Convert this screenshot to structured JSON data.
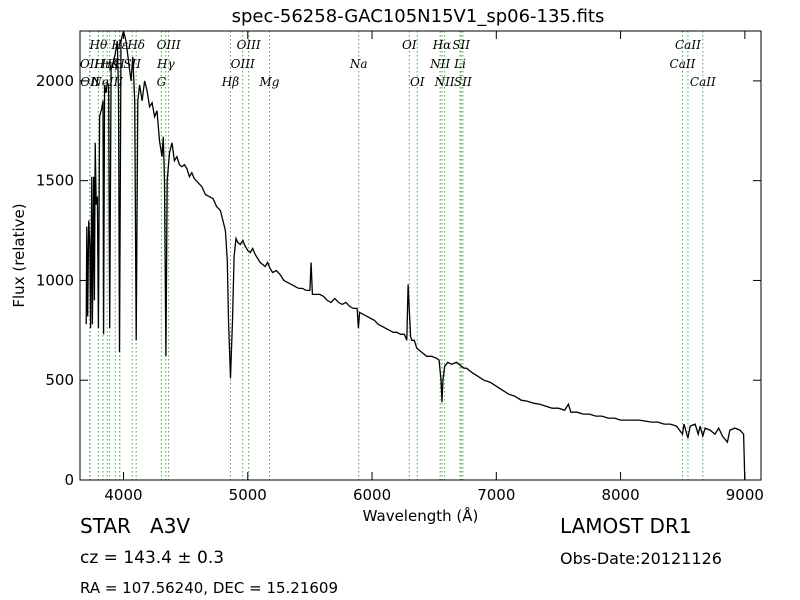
{
  "header": {
    "title": "spec-56258-GAC105N15V1_sp06-135.fits"
  },
  "info": {
    "classification": "STAR   A3V",
    "redshift": "cz = 143.4 ± 0.3",
    "coords": "RA = 107.56240, DEC = 15.21609",
    "survey": "LAMOST DR1",
    "obs_date": "Obs-Date:20121126"
  },
  "chart_data": {
    "type": "line",
    "title": "spec-56258-GAC105N15V1_sp06-135.fits",
    "xlabel": "Wavelength (Å)",
    "ylabel": "Flux (relative)",
    "xlim": [
      3650,
      9130
    ],
    "ylim": [
      0,
      2250
    ],
    "xticks": [
      4000,
      5000,
      6000,
      7000,
      8000,
      9000
    ],
    "yticks": [
      0,
      500,
      1000,
      1500,
      2000
    ],
    "grid": false,
    "line_color": "#000000",
    "marker_color": "#44aa44",
    "series": [
      {
        "values": [
          [
            3700,
            780
          ],
          [
            3705,
            1270
          ],
          [
            3712,
            820
          ],
          [
            3720,
            1300
          ],
          [
            3730,
            1180
          ],
          [
            3735,
            760
          ],
          [
            3745,
            1520
          ],
          [
            3750,
            780
          ],
          [
            3760,
            1520
          ],
          [
            3766,
            900
          ],
          [
            3772,
            1690
          ],
          [
            3780,
            1380
          ],
          [
            3790,
            1420
          ],
          [
            3798,
            760
          ],
          [
            3808,
            1820
          ],
          [
            3815,
            1840
          ],
          [
            3825,
            1860
          ],
          [
            3835,
            1900
          ],
          [
            3840,
            730
          ],
          [
            3848,
            1980
          ],
          [
            3860,
            1940
          ],
          [
            3870,
            1990
          ],
          [
            3880,
            1980
          ],
          [
            3889,
            760
          ],
          [
            3900,
            2060
          ],
          [
            3920,
            2100
          ],
          [
            3935,
            2140
          ],
          [
            3950,
            2200
          ],
          [
            3960,
            1950
          ],
          [
            3968,
            640
          ],
          [
            3980,
            2200
          ],
          [
            4000,
            2250
          ],
          [
            4020,
            2200
          ],
          [
            4040,
            2100
          ],
          [
            4060,
            2000
          ],
          [
            4075,
            2120
          ],
          [
            4090,
            1900
          ],
          [
            4102,
            700
          ],
          [
            4115,
            1900
          ],
          [
            4130,
            1980
          ],
          [
            4150,
            1900
          ],
          [
            4170,
            2000
          ],
          [
            4190,
            1950
          ],
          [
            4210,
            1870
          ],
          [
            4230,
            1890
          ],
          [
            4250,
            1820
          ],
          [
            4270,
            1850
          ],
          [
            4290,
            1700
          ],
          [
            4310,
            1620
          ],
          [
            4320,
            1720
          ],
          [
            4330,
            1500
          ],
          [
            4341,
            620
          ],
          [
            4352,
            1500
          ],
          [
            4370,
            1640
          ],
          [
            4390,
            1690
          ],
          [
            4410,
            1600
          ],
          [
            4430,
            1620
          ],
          [
            4450,
            1580
          ],
          [
            4470,
            1570
          ],
          [
            4490,
            1580
          ],
          [
            4510,
            1560
          ],
          [
            4530,
            1520
          ],
          [
            4550,
            1540
          ],
          [
            4570,
            1510
          ],
          [
            4600,
            1490
          ],
          [
            4630,
            1470
          ],
          [
            4660,
            1430
          ],
          [
            4690,
            1420
          ],
          [
            4720,
            1410
          ],
          [
            4750,
            1370
          ],
          [
            4780,
            1350
          ],
          [
            4800,
            1300
          ],
          [
            4820,
            1250
          ],
          [
            4835,
            1100
          ],
          [
            4845,
            800
          ],
          [
            4861,
            510
          ],
          [
            4877,
            800
          ],
          [
            4890,
            1120
          ],
          [
            4905,
            1210
          ],
          [
            4920,
            1190
          ],
          [
            4940,
            1180
          ],
          [
            4960,
            1200
          ],
          [
            4980,
            1170
          ],
          [
            5000,
            1150
          ],
          [
            5020,
            1140
          ],
          [
            5040,
            1160
          ],
          [
            5060,
            1130
          ],
          [
            5080,
            1110
          ],
          [
            5100,
            1090
          ],
          [
            5120,
            1080
          ],
          [
            5140,
            1070
          ],
          [
            5160,
            1090
          ],
          [
            5180,
            1060
          ],
          [
            5200,
            1040
          ],
          [
            5230,
            1050
          ],
          [
            5260,
            1030
          ],
          [
            5290,
            1000
          ],
          [
            5320,
            990
          ],
          [
            5350,
            980
          ],
          [
            5380,
            970
          ],
          [
            5410,
            960
          ],
          [
            5440,
            960
          ],
          [
            5470,
            950
          ],
          [
            5500,
            950
          ],
          [
            5510,
            1090
          ],
          [
            5520,
            930
          ],
          [
            5550,
            930
          ],
          [
            5580,
            930
          ],
          [
            5610,
            920
          ],
          [
            5640,
            900
          ],
          [
            5670,
            890
          ],
          [
            5700,
            910
          ],
          [
            5730,
            890
          ],
          [
            5760,
            880
          ],
          [
            5790,
            890
          ],
          [
            5820,
            870
          ],
          [
            5850,
            860
          ],
          [
            5880,
            860
          ],
          [
            5890,
            760
          ],
          [
            5900,
            840
          ],
          [
            5930,
            830
          ],
          [
            5960,
            820
          ],
          [
            5990,
            810
          ],
          [
            6020,
            800
          ],
          [
            6050,
            780
          ],
          [
            6080,
            770
          ],
          [
            6110,
            760
          ],
          [
            6140,
            750
          ],
          [
            6170,
            740
          ],
          [
            6200,
            740
          ],
          [
            6230,
            730
          ],
          [
            6260,
            730
          ],
          [
            6280,
            700
          ],
          [
            6290,
            980
          ],
          [
            6300,
            850
          ],
          [
            6310,
            720
          ],
          [
            6320,
            700
          ],
          [
            6340,
            700
          ],
          [
            6360,
            660
          ],
          [
            6400,
            640
          ],
          [
            6440,
            620
          ],
          [
            6480,
            620
          ],
          [
            6520,
            610
          ],
          [
            6540,
            600
          ],
          [
            6555,
            500
          ],
          [
            6563,
            390
          ],
          [
            6570,
            500
          ],
          [
            6585,
            570
          ],
          [
            6610,
            590
          ],
          [
            6640,
            580
          ],
          [
            6680,
            590
          ],
          [
            6700,
            580
          ],
          [
            6720,
            570
          ],
          [
            6740,
            560
          ],
          [
            6760,
            560
          ],
          [
            6800,
            540
          ],
          [
            6850,
            520
          ],
          [
            6900,
            500
          ],
          [
            6950,
            490
          ],
          [
            7000,
            470
          ],
          [
            7050,
            450
          ],
          [
            7100,
            430
          ],
          [
            7150,
            420
          ],
          [
            7200,
            400
          ],
          [
            7250,
            395
          ],
          [
            7300,
            385
          ],
          [
            7350,
            380
          ],
          [
            7400,
            370
          ],
          [
            7450,
            360
          ],
          [
            7500,
            360
          ],
          [
            7550,
            350
          ],
          [
            7580,
            380
          ],
          [
            7600,
            340
          ],
          [
            7650,
            340
          ],
          [
            7700,
            330
          ],
          [
            7750,
            330
          ],
          [
            7800,
            320
          ],
          [
            7850,
            320
          ],
          [
            7900,
            310
          ],
          [
            7950,
            310
          ],
          [
            8000,
            300
          ],
          [
            8050,
            300
          ],
          [
            8100,
            300
          ],
          [
            8150,
            300
          ],
          [
            8200,
            295
          ],
          [
            8250,
            290
          ],
          [
            8300,
            290
          ],
          [
            8350,
            280
          ],
          [
            8400,
            280
          ],
          [
            8450,
            270
          ],
          [
            8498,
            230
          ],
          [
            8510,
            280
          ],
          [
            8542,
            210
          ],
          [
            8560,
            270
          ],
          [
            8600,
            280
          ],
          [
            8625,
            230
          ],
          [
            8640,
            270
          ],
          [
            8662,
            220
          ],
          [
            8680,
            260
          ],
          [
            8720,
            250
          ],
          [
            8760,
            230
          ],
          [
            8790,
            260
          ],
          [
            8820,
            220
          ],
          [
            8860,
            190
          ],
          [
            8880,
            250
          ],
          [
            8920,
            260
          ],
          [
            8960,
            250
          ],
          [
            8990,
            230
          ],
          [
            9000,
            0
          ]
        ]
      }
    ],
    "line_markers": [
      {
        "label": "Hθ",
        "wavelength": 3798,
        "row": 0
      },
      {
        "label": "OII",
        "wavelength": 3727,
        "row": 1
      },
      {
        "label": "OII",
        "wavelength": 3730,
        "row": 2
      },
      {
        "label": "Hη",
        "wavelength": 3835,
        "row": 1
      },
      {
        "label": "Hζ",
        "wavelength": 3889,
        "row": 1
      },
      {
        "label": "Hε",
        "wavelength": 3970,
        "row": 0
      },
      {
        "label": "Hδ",
        "wavelength": 4102,
        "row": 0
      },
      {
        "label": "K",
        "wavelength": 3934,
        "row": 1
      },
      {
        "label": "H",
        "wavelength": 3969,
        "row": 1
      },
      {
        "label": "NeIII",
        "wavelength": 3869,
        "row": 2
      },
      {
        "label": "SII",
        "wavelength": 4070,
        "row": 1
      },
      {
        "label": "OIII",
        "wavelength": 4363,
        "row": 0
      },
      {
        "label": "Hγ",
        "wavelength": 4341,
        "row": 1
      },
      {
        "label": "G",
        "wavelength": 4305,
        "row": 2
      },
      {
        "label": "OIII",
        "wavelength": 5007,
        "row": 0
      },
      {
        "label": "OIII",
        "wavelength": 4959,
        "row": 1
      },
      {
        "label": "Hβ",
        "wavelength": 4861,
        "row": 2
      },
      {
        "label": "Mg",
        "wavelength": 5175,
        "row": 2
      },
      {
        "label": "Na",
        "wavelength": 5893,
        "row": 1
      },
      {
        "label": "OI",
        "wavelength": 6300,
        "row": 0
      },
      {
        "label": "OI",
        "wavelength": 6364,
        "row": 2
      },
      {
        "label": "Hα",
        "wavelength": 6563,
        "row": 0
      },
      {
        "label": "NII",
        "wavelength": 6548,
        "row": 1
      },
      {
        "label": "NII",
        "wavelength": 6584,
        "row": 2
      },
      {
        "label": "SII",
        "wavelength": 6717,
        "row": 0
      },
      {
        "label": "Li",
        "wavelength": 6708,
        "row": 1
      },
      {
        "label": "SII",
        "wavelength": 6731,
        "row": 2
      },
      {
        "label": "CaII",
        "wavelength": 8542,
        "row": 0
      },
      {
        "label": "CaII",
        "wavelength": 8498,
        "row": 1
      },
      {
        "label": "CaII",
        "wavelength": 8662,
        "row": 2
      }
    ]
  }
}
